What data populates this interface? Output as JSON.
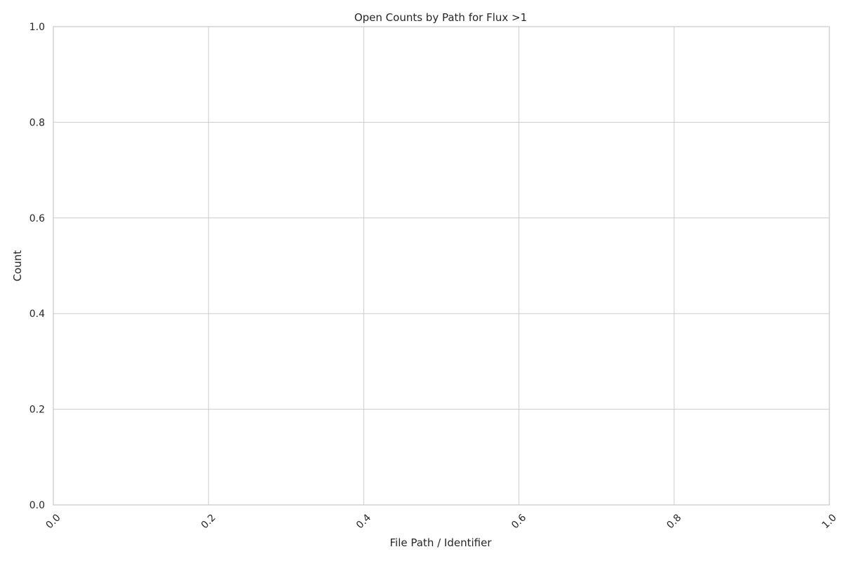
{
  "chart_data": {
    "type": "bar",
    "title": "Open Counts by Path for Flux >1",
    "xlabel": "File Path / Identifier",
    "ylabel": "Count",
    "xlim": [
      0,
      1
    ],
    "ylim": [
      0,
      1
    ],
    "xticks": [
      "0.0",
      "0.2",
      "0.4",
      "0.6",
      "0.8",
      "1.0"
    ],
    "yticks": [
      "0.0",
      "0.2",
      "0.4",
      "0.6",
      "0.8",
      "1.0"
    ],
    "xtick_rotation": -45,
    "grid": true,
    "categories": [],
    "values": []
  }
}
